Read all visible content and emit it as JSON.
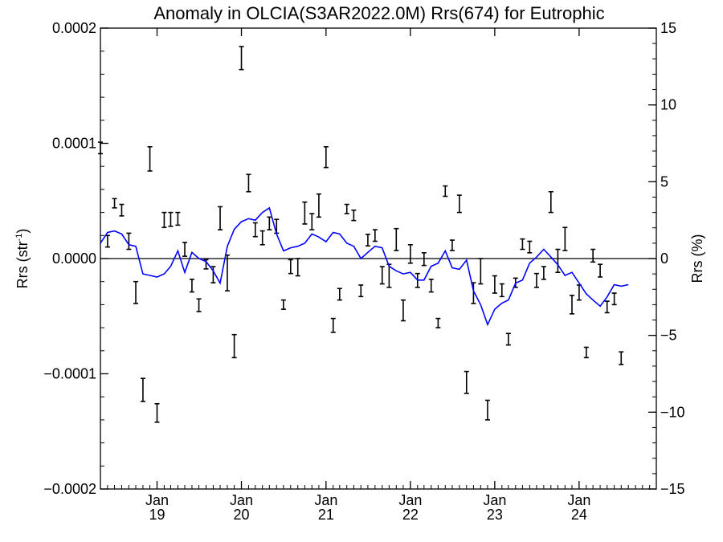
{
  "chart_data": {
    "type": "scatter",
    "title": "Anomaly in OLCIA(S3AR2022.0M) Rrs(674) for Eutrophic",
    "ylabel": "Rrs (str",
    "ylabel_exp": "-1",
    "ylabel_close": ")",
    "y2label": "Rrs (%)",
    "ylim": [
      -0.0002,
      0.0002
    ],
    "y2lim": [
      -15,
      15
    ],
    "xlim": [
      "2018-05-01",
      "2024-11-30"
    ],
    "yticks": [
      {
        "value": 0.0002,
        "label": "0.0002"
      },
      {
        "value": 0.0001,
        "label": "0.0001"
      },
      {
        "value": 0.0,
        "label": "0.0000"
      },
      {
        "value": -0.0001,
        "label": "−0.0001"
      },
      {
        "value": -0.0002,
        "label": "−0.0002"
      }
    ],
    "y2ticks": [
      {
        "value": 15,
        "label": "15"
      },
      {
        "value": 10,
        "label": "10"
      },
      {
        "value": 5,
        "label": "5"
      },
      {
        "value": 0,
        "label": "0"
      },
      {
        "value": -5,
        "label": "−5"
      },
      {
        "value": -10,
        "label": "−10"
      },
      {
        "value": -15,
        "label": "−15"
      }
    ],
    "xticks": [
      {
        "date": "2019-01-01",
        "month": "Jan",
        "year": "19"
      },
      {
        "date": "2020-01-01",
        "month": "Jan",
        "year": "20"
      },
      {
        "date": "2021-01-01",
        "month": "Jan",
        "year": "21"
      },
      {
        "date": "2022-01-01",
        "month": "Jan",
        "year": "22"
      },
      {
        "date": "2023-01-01",
        "month": "Jan",
        "year": "23"
      },
      {
        "date": "2024-01-01",
        "month": "Jan",
        "year": "24"
      }
    ],
    "zero_line": 0,
    "series": [
      {
        "kind": "errorbar",
        "color": "#000000",
        "points": [
          {
            "x": "2018-05-01",
            "lo": 9.1e-05,
            "hi": 0.000101
          },
          {
            "x": "2018-06-01",
            "lo": 1e-05,
            "hi": 2e-05
          },
          {
            "x": "2018-07-01",
            "lo": 4.4e-05,
            "hi": 5.2e-05
          },
          {
            "x": "2018-08-01",
            "lo": 3.7e-05,
            "hi": 4.7e-05
          },
          {
            "x": "2018-09-01",
            "lo": 8e-06,
            "hi": 2.2e-05
          },
          {
            "x": "2018-10-01",
            "lo": -3.9e-05,
            "hi": -2e-05
          },
          {
            "x": "2018-11-01",
            "lo": -0.000124,
            "hi": -0.000104
          },
          {
            "x": "2018-12-01",
            "lo": 7.6e-05,
            "hi": 9.7e-05
          },
          {
            "x": "2019-01-01",
            "lo": -0.000142,
            "hi": -0.000126
          },
          {
            "x": "2019-02-01",
            "lo": 2.7e-05,
            "hi": 4e-05
          },
          {
            "x": "2019-03-01",
            "lo": 2.8e-05,
            "hi": 4e-05
          },
          {
            "x": "2019-04-01",
            "lo": 2.9e-05,
            "hi": 4e-05
          },
          {
            "x": "2019-05-01",
            "lo": 2e-06,
            "hi": 1.4e-05
          },
          {
            "x": "2019-06-01",
            "lo": -2.9e-05,
            "hi": -1.8e-05
          },
          {
            "x": "2019-07-01",
            "lo": -4.6e-05,
            "hi": -3.5e-05
          },
          {
            "x": "2019-08-01",
            "lo": -9e-06,
            "hi": -1e-06
          },
          {
            "x": "2019-09-01",
            "lo": -2.1e-05,
            "hi": -7e-06
          },
          {
            "x": "2019-10-01",
            "lo": 2.5e-05,
            "hi": 4.5e-05
          },
          {
            "x": "2019-11-01",
            "lo": -2.8e-05,
            "hi": 3e-06
          },
          {
            "x": "2019-12-01",
            "lo": -8.6e-05,
            "hi": -6.6e-05
          },
          {
            "x": "2020-01-01",
            "lo": 0.000164,
            "hi": 0.000184
          },
          {
            "x": "2020-02-01",
            "lo": 5.8e-05,
            "hi": 7.3e-05
          },
          {
            "x": "2020-03-01",
            "lo": 1.9e-05,
            "hi": 3.1e-05
          },
          {
            "x": "2020-04-01",
            "lo": 1.2e-05,
            "hi": 2.4e-05
          },
          {
            "x": "2020-05-01",
            "lo": 2.5e-05,
            "hi": 3.6e-05
          },
          {
            "x": "2020-06-01",
            "lo": 2.2e-05,
            "hi": 3.4e-05
          },
          {
            "x": "2020-07-01",
            "lo": -4.4e-05,
            "hi": -3.6e-05
          },
          {
            "x": "2020-08-01",
            "lo": -1.3e-05,
            "hi": -1e-06
          },
          {
            "x": "2020-09-01",
            "lo": -1.5e-05,
            "hi": 0.0
          },
          {
            "x": "2020-10-01",
            "lo": 3e-05,
            "hi": 4.9e-05
          },
          {
            "x": "2020-11-01",
            "lo": 2.5e-05,
            "hi": 3.9e-05
          },
          {
            "x": "2020-12-01",
            "lo": 3.6e-05,
            "hi": 5.6e-05
          },
          {
            "x": "2021-01-01",
            "lo": 7.9e-05,
            "hi": 9.7e-05
          },
          {
            "x": "2021-02-01",
            "lo": -6.4e-05,
            "hi": -5.2e-05
          },
          {
            "x": "2021-03-01",
            "lo": -3.6e-05,
            "hi": -2.6e-05
          },
          {
            "x": "2021-04-01",
            "lo": 3.9e-05,
            "hi": 4.7e-05
          },
          {
            "x": "2021-05-01",
            "lo": 3.3e-05,
            "hi": 4.2e-05
          },
          {
            "x": "2021-06-01",
            "lo": -3.3e-05,
            "hi": -2.3e-05
          },
          {
            "x": "2021-07-01",
            "lo": 1.1e-05,
            "hi": 2.1e-05
          },
          {
            "x": "2021-08-01",
            "lo": 1.5e-05,
            "hi": 2.5e-05
          },
          {
            "x": "2021-09-01",
            "lo": -2.2e-05,
            "hi": -7e-06
          },
          {
            "x": "2021-10-01",
            "lo": -2.5e-05,
            "hi": -5e-06
          },
          {
            "x": "2021-11-01",
            "lo": 7e-06,
            "hi": 2.6e-05
          },
          {
            "x": "2021-12-01",
            "lo": -5.4e-05,
            "hi": -3.6e-05
          },
          {
            "x": "2022-01-01",
            "lo": -4e-06,
            "hi": 1.2e-05
          },
          {
            "x": "2022-02-01",
            "lo": -2.5e-05,
            "hi": -1.3e-05
          },
          {
            "x": "2022-03-01",
            "lo": -6e-06,
            "hi": 5e-06
          },
          {
            "x": "2022-04-01",
            "lo": -2.9e-05,
            "hi": -1.8e-05
          },
          {
            "x": "2022-05-01",
            "lo": -6e-05,
            "hi": -5.2e-05
          },
          {
            "x": "2022-06-01",
            "lo": 5.4e-05,
            "hi": 6.3e-05
          },
          {
            "x": "2022-07-01",
            "lo": 7e-06,
            "hi": 1.6e-05
          },
          {
            "x": "2022-08-01",
            "lo": 4e-05,
            "hi": 5.5e-05
          },
          {
            "x": "2022-09-01",
            "lo": -0.000117,
            "hi": -9.8e-05
          },
          {
            "x": "2022-10-01",
            "lo": -3.9e-05,
            "hi": -2.1e-05
          },
          {
            "x": "2022-11-01",
            "lo": -2.2e-05,
            "hi": 0.0
          },
          {
            "x": "2022-12-01",
            "lo": -0.00014,
            "hi": -0.000123
          },
          {
            "x": "2023-01-01",
            "lo": -3e-05,
            "hi": -1.5e-05
          },
          {
            "x": "2023-02-01",
            "lo": -3.3e-05,
            "hi": -2.2e-05
          },
          {
            "x": "2023-03-01",
            "lo": -7.5e-05,
            "hi": -6.5e-05
          },
          {
            "x": "2023-04-01",
            "lo": -2.5e-05,
            "hi": -1.7e-05
          },
          {
            "x": "2023-05-01",
            "lo": 8e-06,
            "hi": 1.7e-05
          },
          {
            "x": "2023-06-01",
            "lo": 5e-06,
            "hi": 1.5e-05
          },
          {
            "x": "2023-07-01",
            "lo": -2.5e-05,
            "hi": -1.3e-05
          },
          {
            "x": "2023-08-01",
            "lo": -1.8e-05,
            "hi": -7e-06
          },
          {
            "x": "2023-09-01",
            "lo": 4e-05,
            "hi": 5.8e-05
          },
          {
            "x": "2023-10-01",
            "lo": -1.2e-05,
            "hi": 8e-06
          },
          {
            "x": "2023-11-01",
            "lo": 7e-06,
            "hi": 2.7e-05
          },
          {
            "x": "2023-12-01",
            "lo": -4.8e-05,
            "hi": -3.2e-05
          },
          {
            "x": "2024-01-01",
            "lo": -3.6e-05,
            "hi": -2.3e-05
          },
          {
            "x": "2024-02-01",
            "lo": -8.6e-05,
            "hi": -7.7e-05
          },
          {
            "x": "2024-03-01",
            "lo": -3e-06,
            "hi": 8e-06
          },
          {
            "x": "2024-04-01",
            "lo": -1.6e-05,
            "hi": -5e-06
          },
          {
            "x": "2024-05-01",
            "lo": -4.7e-05,
            "hi": -3.7e-05
          },
          {
            "x": "2024-06-01",
            "lo": -4e-05,
            "hi": -3e-05
          },
          {
            "x": "2024-07-01",
            "lo": -9.2e-05,
            "hi": -8.1e-05
          }
        ]
      },
      {
        "kind": "line",
        "color": "#0000ff",
        "axis": "right",
        "points": [
          {
            "x": "2018-05-01",
            "y": 1.0
          },
          {
            "x": "2018-06-01",
            "y": 1.7
          },
          {
            "x": "2018-07-01",
            "y": 1.8
          },
          {
            "x": "2018-08-01",
            "y": 1.6
          },
          {
            "x": "2018-09-01",
            "y": 0.9
          },
          {
            "x": "2018-10-01",
            "y": 0.8
          },
          {
            "x": "2018-11-01",
            "y": -1.0
          },
          {
            "x": "2018-12-01",
            "y": -1.1
          },
          {
            "x": "2019-01-01",
            "y": -1.2
          },
          {
            "x": "2019-02-01",
            "y": -1.0
          },
          {
            "x": "2019-03-01",
            "y": -0.5
          },
          {
            "x": "2019-04-01",
            "y": 0.5
          },
          {
            "x": "2019-05-01",
            "y": -0.9
          },
          {
            "x": "2019-06-01",
            "y": 0.4
          },
          {
            "x": "2019-07-01",
            "y": 0.0
          },
          {
            "x": "2019-08-01",
            "y": -0.2
          },
          {
            "x": "2019-09-01",
            "y": -0.8
          },
          {
            "x": "2019-10-01",
            "y": -1.6
          },
          {
            "x": "2019-11-01",
            "y": 0.8
          },
          {
            "x": "2019-12-01",
            "y": 1.9
          },
          {
            "x": "2020-01-01",
            "y": 2.4
          },
          {
            "x": "2020-02-01",
            "y": 2.6
          },
          {
            "x": "2020-03-01",
            "y": 2.5
          },
          {
            "x": "2020-04-01",
            "y": 3.0
          },
          {
            "x": "2020-05-01",
            "y": 3.3
          },
          {
            "x": "2020-06-01",
            "y": 1.6
          },
          {
            "x": "2020-07-01",
            "y": 0.5
          },
          {
            "x": "2020-08-01",
            "y": 0.7
          },
          {
            "x": "2020-09-01",
            "y": 0.8
          },
          {
            "x": "2020-10-01",
            "y": 1.0
          },
          {
            "x": "2020-11-01",
            "y": 1.6
          },
          {
            "x": "2020-12-01",
            "y": 1.4
          },
          {
            "x": "2021-01-01",
            "y": 1.1
          },
          {
            "x": "2021-02-01",
            "y": 1.7
          },
          {
            "x": "2021-03-01",
            "y": 1.6
          },
          {
            "x": "2021-04-01",
            "y": 1.0
          },
          {
            "x": "2021-05-01",
            "y": 0.8
          },
          {
            "x": "2021-06-01",
            "y": 0.0
          },
          {
            "x": "2021-07-01",
            "y": 0.4
          },
          {
            "x": "2021-08-01",
            "y": 0.8
          },
          {
            "x": "2021-09-01",
            "y": 0.7
          },
          {
            "x": "2021-10-01",
            "y": -0.5
          },
          {
            "x": "2021-11-01",
            "y": -0.8
          },
          {
            "x": "2021-12-01",
            "y": -1.0
          },
          {
            "x": "2022-01-01",
            "y": -0.9
          },
          {
            "x": "2022-02-01",
            "y": -1.4
          },
          {
            "x": "2022-03-01",
            "y": -1.4
          },
          {
            "x": "2022-04-01",
            "y": -0.5
          },
          {
            "x": "2022-05-01",
            "y": -0.3
          },
          {
            "x": "2022-06-01",
            "y": 0.5
          },
          {
            "x": "2022-07-01",
            "y": -0.6
          },
          {
            "x": "2022-08-01",
            "y": -0.7
          },
          {
            "x": "2022-09-01",
            "y": -0.1
          },
          {
            "x": "2022-10-01",
            "y": -2.1
          },
          {
            "x": "2022-11-01",
            "y": -3.0
          },
          {
            "x": "2022-12-01",
            "y": -4.3
          },
          {
            "x": "2023-01-01",
            "y": -3.3
          },
          {
            "x": "2023-02-01",
            "y": -2.9
          },
          {
            "x": "2023-03-01",
            "y": -2.7
          },
          {
            "x": "2023-04-01",
            "y": -1.6
          },
          {
            "x": "2023-05-01",
            "y": -1.4
          },
          {
            "x": "2023-06-01",
            "y": -0.3
          },
          {
            "x": "2023-07-01",
            "y": 0.1
          },
          {
            "x": "2023-08-01",
            "y": 0.6
          },
          {
            "x": "2023-09-01",
            "y": 0.1
          },
          {
            "x": "2023-10-01",
            "y": -0.4
          },
          {
            "x": "2023-11-01",
            "y": -1.1
          },
          {
            "x": "2023-12-01",
            "y": -0.9
          },
          {
            "x": "2024-01-01",
            "y": -1.6
          },
          {
            "x": "2024-02-01",
            "y": -2.3
          },
          {
            "x": "2024-03-01",
            "y": -2.7
          },
          {
            "x": "2024-04-01",
            "y": -3.1
          },
          {
            "x": "2024-05-01",
            "y": -2.5
          },
          {
            "x": "2024-06-01",
            "y": -1.7
          },
          {
            "x": "2024-07-01",
            "y": -1.8
          },
          {
            "x": "2024-08-01",
            "y": -1.7
          }
        ]
      }
    ]
  }
}
